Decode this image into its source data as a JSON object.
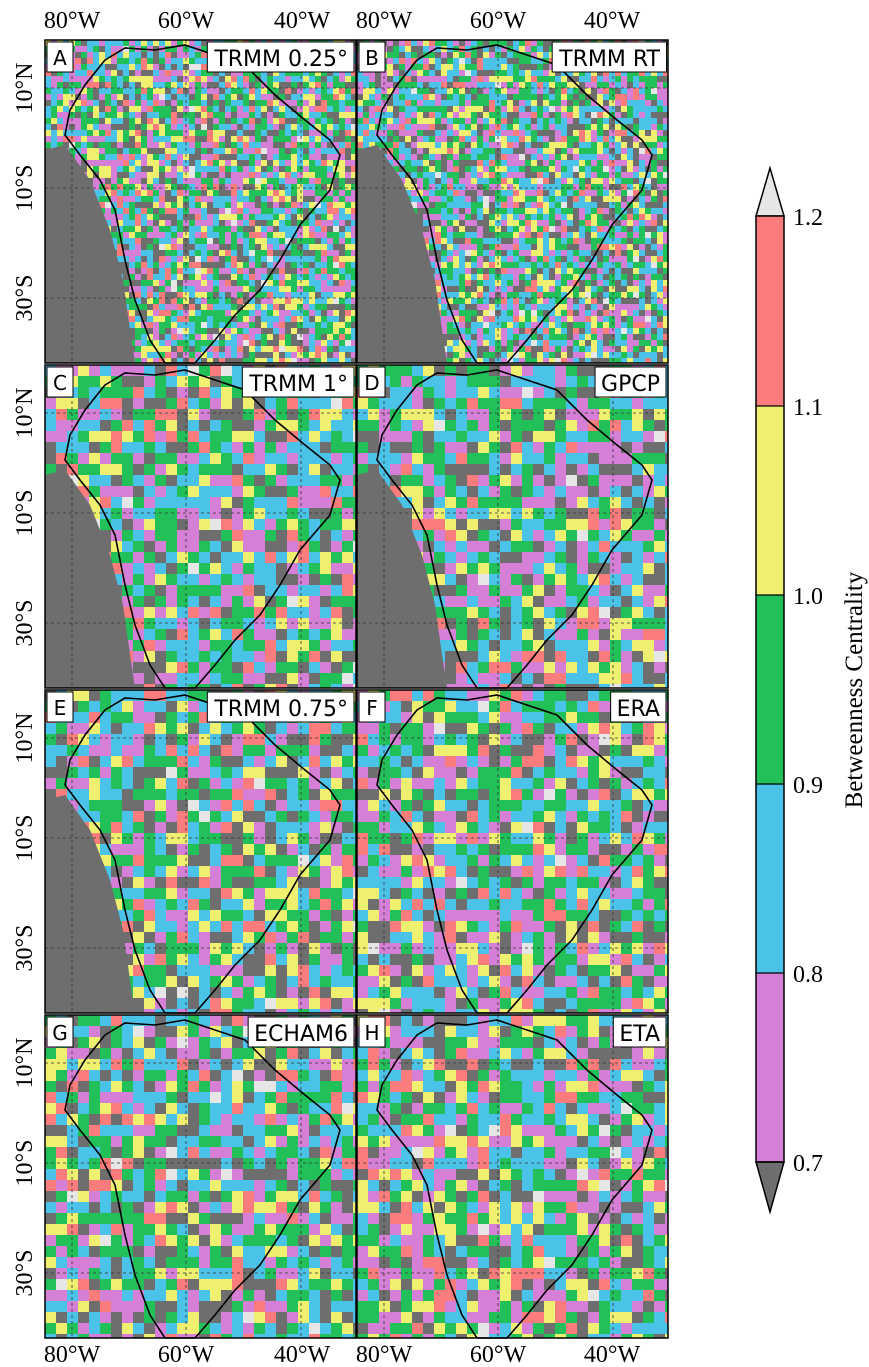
{
  "axes": {
    "top_ticks": [
      "80°W",
      "60°W",
      "40°W"
    ],
    "bottom_ticks": [
      "80°W",
      "60°W",
      "40°W"
    ],
    "left_ticks": [
      "10°N",
      "10°S",
      "30°S"
    ]
  },
  "panels": [
    {
      "letter": "A",
      "title": "TRMM 0.25°"
    },
    {
      "letter": "B",
      "title": "TRMM RT"
    },
    {
      "letter": "C",
      "title": "TRMM 1°"
    },
    {
      "letter": "D",
      "title": "GPCP"
    },
    {
      "letter": "E",
      "title": "TRMM 0.75°"
    },
    {
      "letter": "F",
      "title": "ERA"
    },
    {
      "letter": "G",
      "title": "ECHAM6"
    },
    {
      "letter": "H",
      "title": "ETA"
    }
  ],
  "colorbar": {
    "title": "Betweenness Centrality",
    "tick_labels": [
      "1.2",
      "1.1",
      "1.0",
      "0.9",
      "0.8",
      "0.7"
    ],
    "levels": [
      0.7,
      0.8,
      0.9,
      1.0,
      1.1,
      1.2
    ],
    "colors": {
      "under": "#6e6e6e",
      "0.7-0.8": "#d67fd6",
      "0.8-0.9": "#4bc3e8",
      "0.9-1.0": "#22c058",
      "1.0-1.1": "#f0f070",
      "1.1-1.2": "#fa7c7c",
      "over": "#e6e6e6"
    }
  }
}
